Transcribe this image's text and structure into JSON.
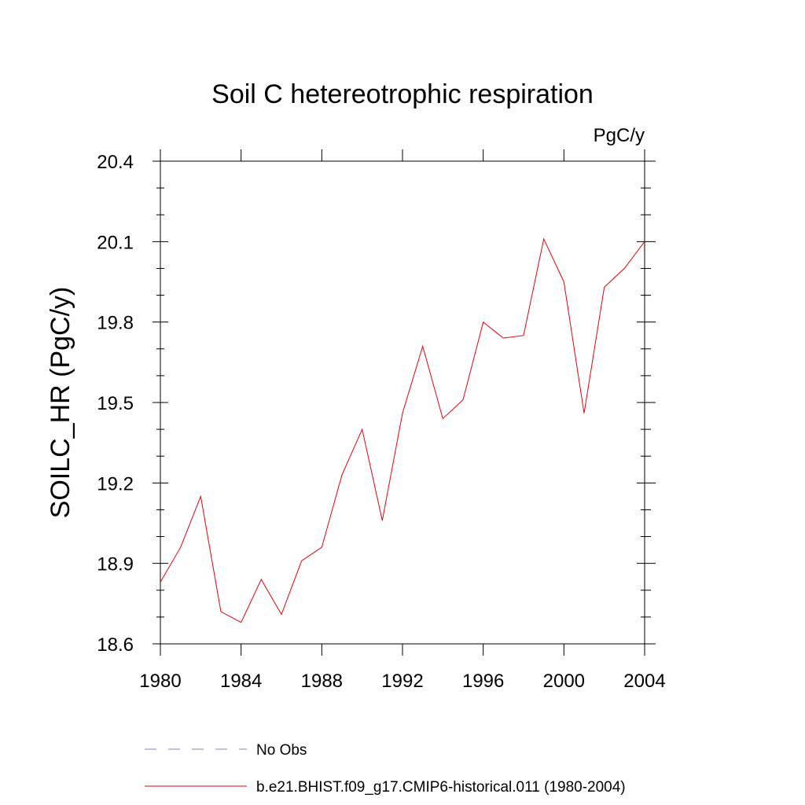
{
  "chart_data": {
    "type": "line",
    "title": "Soil C hetereotrophic respiration",
    "units_label": "PgC/y",
    "ylabel": "SOILC_HR  (PgC/y)",
    "xlabel": "",
    "xlim": [
      1980,
      2004
    ],
    "ylim": [
      18.6,
      20.4
    ],
    "x_ticks": [
      1980,
      1984,
      1988,
      1992,
      1996,
      2000,
      2004
    ],
    "y_ticks": [
      18.6,
      18.9,
      19.2,
      19.5,
      19.8,
      20.1,
      20.4
    ],
    "y_tick_labels": [
      "18.6",
      "18.9",
      "19.2",
      "19.5",
      "19.8",
      "20.1",
      "20.4"
    ],
    "grid": false,
    "legend_position": "bottom",
    "series": [
      {
        "name": "No Obs",
        "color": "#8080c0",
        "style": "dashed",
        "x": [],
        "values": []
      },
      {
        "name": "b.e21.BHIST.f09_g17.CMIP6-historical.011 (1980-2004)",
        "color": "#e8000b",
        "style": "solid",
        "x": [
          1980,
          1981,
          1982,
          1983,
          1984,
          1985,
          1986,
          1987,
          1988,
          1989,
          1990,
          1991,
          1992,
          1993,
          1994,
          1995,
          1996,
          1997,
          1998,
          1999,
          2000,
          2001,
          2002,
          2003,
          2004
        ],
        "values": [
          18.83,
          18.96,
          19.15,
          18.72,
          18.68,
          18.84,
          18.71,
          18.91,
          18.96,
          19.23,
          19.4,
          19.06,
          19.46,
          19.71,
          19.44,
          19.51,
          19.8,
          19.74,
          19.75,
          20.11,
          19.95,
          19.46,
          19.93,
          20.0,
          20.1
        ]
      }
    ]
  }
}
